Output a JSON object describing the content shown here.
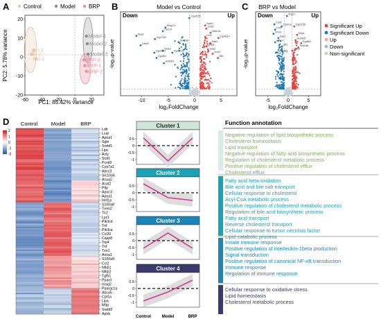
{
  "panel_letters": {
    "a": "A",
    "b": "B",
    "c": "C",
    "d": "D"
  },
  "colors": {
    "control": "#e2c7a6",
    "model": "#8c8c8c",
    "brp": "#e8909f",
    "up": "#e8413a",
    "down": "#1f77b4",
    "ns": "#c9cfd6",
    "cluster_line": "#d63a8a",
    "cluster_band": "#d4d4d4",
    "heat_high": "#d7262a",
    "heat_mid": "#ffffff",
    "heat_low": "#2b5ea8",
    "annot_c1": "#7fae57",
    "annot_c2": "#1f9fb2",
    "annot_c3": "#1a86b6",
    "annot_c4": "#3a3a6e"
  },
  "chart_data": [
    {
      "type": "scatter",
      "panel": "A",
      "legend": [
        "Control",
        "Model",
        "BRP"
      ],
      "legend_position": "top",
      "xlabel": "PC1: 85.42% variance",
      "ylabel": "PC2: 5.78% variance",
      "xlim": [
        -60,
        35
      ],
      "ylim": [
        -20,
        22
      ],
      "xticks": [
        -60,
        -40,
        -20,
        0,
        20
      ],
      "yticks": [
        -20,
        -10,
        0,
        10,
        20
      ],
      "series": [
        {
          "name": "Control",
          "points": [
            {
              "x": -49,
              "y": 3.5,
              "label": "Ctrl-3"
            },
            {
              "x": -51,
              "y": 1.5,
              "label": "Ctrl-1"
            },
            {
              "x": -47,
              "y": -1,
              "label": "Ctrl-2"
            }
          ]
        },
        {
          "name": "Model",
          "points": [
            {
              "x": 14,
              "y": 11,
              "label": "Model-1"
            },
            {
              "x": 15,
              "y": 7,
              "label": "Model-2"
            },
            {
              "x": 16,
              "y": 1.5,
              "label": "Model-3"
            }
          ]
        },
        {
          "name": "BRP",
          "points": [
            {
              "x": 11,
              "y": -1.5,
              "label": "BRP-3"
            },
            {
              "x": 12,
              "y": -4.5,
              "label": "BRP-1"
            },
            {
              "x": 14,
              "y": -7.5,
              "label": "BRP-2"
            }
          ]
        }
      ]
    },
    {
      "type": "scatter",
      "panel": "B",
      "title": "Model vs Control",
      "xlabel": "log₂FoldChange",
      "ylabel": "-log₁₀p-value",
      "xlim": [
        -14,
        8
      ],
      "ylim": [
        0,
        16
      ],
      "xticks": [
        -10,
        -5,
        0,
        5
      ],
      "region_labels": [
        "Down",
        "Up"
      ],
      "labels": [
        {
          "text": "Cyp2c55",
          "x": -1,
          "y": 14.8
        },
        {
          "text": "Mmp13",
          "x": -5.5,
          "y": 13
        },
        {
          "text": "Cxcl14",
          "x": -6,
          "y": 12.3
        },
        {
          "text": "Mup1",
          "x": -11,
          "y": 11.4
        },
        {
          "text": "Cyp17a1",
          "x": -7.5,
          "y": 10.8
        },
        {
          "text": "Sult2a8",
          "x": -3,
          "y": 10.2
        },
        {
          "text": "Gstp3",
          "x": -10.2,
          "y": 9.6
        },
        {
          "text": "Cidea",
          "x": -6,
          "y": 8.6
        },
        {
          "text": "Cyp4a14",
          "x": -7.6,
          "y": 8.2
        },
        {
          "text": "Cyp2b10",
          "x": -4.2,
          "y": 8.2
        },
        {
          "text": "Cyp8b1",
          "x": -7.2,
          "y": 7.2
        },
        {
          "text": "Hsd3b5",
          "x": -5.8,
          "y": 6.2
        },
        {
          "text": "Nupr1",
          "x": 2,
          "y": 13.4
        },
        {
          "text": "Cd36",
          "x": 2.2,
          "y": 12.8
        },
        {
          "text": "Cdkn1a",
          "x": 3,
          "y": 12
        },
        {
          "text": "Lcn2",
          "x": 2,
          "y": 11.2
        },
        {
          "text": "Cyp4a14",
          "x": 4.5,
          "y": 11
        },
        {
          "text": "Saa1",
          "x": 3,
          "y": 10
        },
        {
          "text": "Igfbp1",
          "x": 2.2,
          "y": 9.4
        },
        {
          "text": "Saa2",
          "x": 2.6,
          "y": 8.6
        },
        {
          "text": "Orm3",
          "x": 3.4,
          "y": 8
        },
        {
          "text": "Mt2",
          "x": 4.4,
          "y": 7.2
        }
      ]
    },
    {
      "type": "scatter",
      "panel": "C",
      "title": "BRP vs Model",
      "xlabel": "log₂FoldChange",
      "ylabel": "-log₁₀p-value",
      "xlim": [
        -8,
        8
      ],
      "ylim": [
        0,
        16
      ],
      "xticks": [
        -5,
        0,
        5
      ],
      "region_labels": [
        "Down",
        "Up"
      ],
      "legend": [
        "Significant Up",
        "Significant Down",
        "Up",
        "Down",
        "Non-significant"
      ],
      "legend_position": "right",
      "labels": [
        {
          "text": "Nupr1",
          "x": -0.3,
          "y": 15.2
        },
        {
          "text": "Cd36",
          "x": -3.4,
          "y": 13.6
        },
        {
          "text": "Cdkn1a",
          "x": -1.6,
          "y": 13.2
        },
        {
          "text": "Lcn2",
          "x": -3.2,
          "y": 12.6
        },
        {
          "text": "Orm3",
          "x": -3.6,
          "y": 11.8
        },
        {
          "text": "Saa1",
          "x": -2.4,
          "y": 11
        },
        {
          "text": "Igfbp1",
          "x": -3.2,
          "y": 10.2
        },
        {
          "text": "Mt2",
          "x": -1.5,
          "y": 9.4
        },
        {
          "text": "Gadd45g",
          "x": -3,
          "y": 8.2
        },
        {
          "text": "Cyp2c55",
          "x": 1.5,
          "y": 13.2
        },
        {
          "text": "Mup1",
          "x": 2.2,
          "y": 11.6
        },
        {
          "text": "Hsd3b5",
          "x": 1.8,
          "y": 10.6
        },
        {
          "text": "Cyp8b1",
          "x": 3.2,
          "y": 10
        },
        {
          "text": "Sult2a8",
          "x": 2.5,
          "y": 9.2
        },
        {
          "text": "Cidea",
          "x": 1,
          "y": 8.6
        }
      ]
    },
    {
      "type": "heatmap",
      "panel": "D",
      "columns": [
        "Control",
        "Model",
        "BRP"
      ],
      "scale_ticks": [
        "2",
        "1",
        "0",
        "-1",
        "-2"
      ],
      "clusters": [
        {
          "rows": 34,
          "values": [
            1.6,
            -1.2,
            -0.6
          ]
        },
        {
          "rows": 14,
          "values": [
            1.4,
            -1.4,
            0.4
          ]
        },
        {
          "rows": 35,
          "values": [
            -1.2,
            1.4,
            -0.5
          ]
        },
        {
          "rows": 21,
          "values": [
            -1.1,
            0.9,
            0.4
          ]
        },
        {
          "rows": 17,
          "values": [
            -0.9,
            -0.5,
            1.3
          ]
        }
      ],
      "genes": [
        "Ldlr",
        "Lcat",
        "Apoa1",
        "Sgle",
        "Srebf1",
        "Lipc",
        "Acly",
        "Scd1",
        "Pcsk9",
        "Cyp7a1",
        "Abcc3",
        "Slc10a5",
        "Acaa2",
        "Acat2",
        "Pltp",
        "Apoc3",
        "Apoa1",
        "Hnf1a",
        "S100a8",
        "Trem2",
        "Tlr2",
        "Lyz1",
        "Pik3cd",
        "Tnf",
        "Pik3ca",
        "Ccl20",
        "Casp8",
        "Trp4",
        "Tnf",
        "Txn1",
        "Anxa1",
        "S100a9",
        "Ccl2",
        "Nfkb1",
        "Nfkb2",
        "Tgfb1",
        "Ppard",
        "Insig2",
        "Ppargc1a",
        "Abca5",
        "Cpt1a",
        "Lipa",
        "Mttp",
        "Srebf2",
        "Apob"
      ]
    },
    {
      "type": "line",
      "panel": "D",
      "categories": [
        "Control",
        "Model",
        "BRP"
      ],
      "yticks": [
        0.5,
        0,
        -0.5,
        -1.0
      ],
      "ylim": [
        -1.2,
        1.0
      ],
      "series": [
        {
          "name": "Cluster 1",
          "values": [
            0.55,
            -1.1,
            0.55
          ]
        },
        {
          "name": "Cluster 2",
          "values": [
            0.65,
            -0.35,
            -0.55
          ]
        },
        {
          "name": "Cluster 3",
          "values": [
            -0.55,
            0.55,
            -0.55
          ]
        },
        {
          "name": "Cluster 4",
          "values": [
            -0.9,
            -0.25,
            0.6
          ]
        }
      ]
    }
  ],
  "annotation": {
    "header": "Function annotation",
    "groups": [
      {
        "lines": [
          "Negative regulation of lipid biosynthetic process",
          "Cholesterol homeostasis",
          "Lipid transport",
          "Negative regulation of fatty acid biosynthetic process",
          "Regulation of cholesterol metabolic process",
          "Positive regulation of cholesterol efflux",
          "Cholesterol efflux"
        ]
      },
      {
        "lines": [
          "Fatty acid beta-oxidation",
          "Bile acid and bile salt transport",
          "Cellular response to cholesterol",
          "Acyl-CoA metabolic process",
          "Positive regulation of cholesterol metabolic process",
          "Regulation of bile acid biosynthetic process",
          "Fatty acid transport",
          "Reverse cholesterol transport",
          "Cellular response to tumor necrosis factor",
          "Lipid catabolic process"
        ]
      },
      {
        "lines": [
          "Innate immune response",
          "Positive regulation of interleukin-1beta production",
          "Signal transduction",
          "Positive regulation of canonical NF-κB transduction",
          "Immune response",
          "Regulation of immune response"
        ]
      },
      {
        "lines": [
          "Cellular response to oxidative stress",
          "Lipid homeostasis",
          "Cholesterol metabolic process"
        ]
      }
    ]
  }
}
